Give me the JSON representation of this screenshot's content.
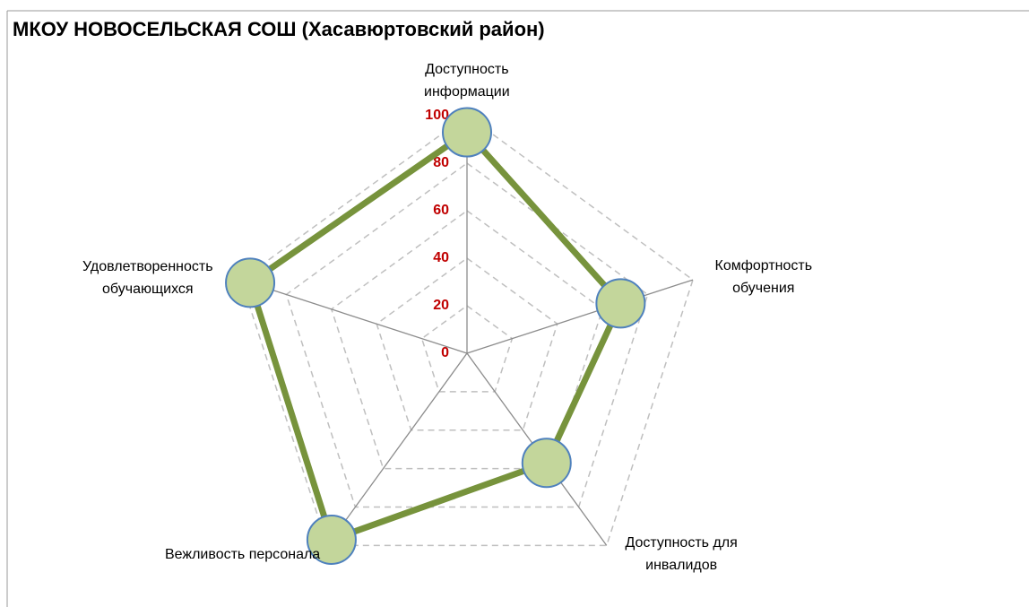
{
  "chart_data": {
    "type": "radar",
    "title": "МКОУ НОВОСЕЛЬСКАЯ СОШ (Хасавюртовский район)",
    "categories": [
      "Доступность\nинформации",
      "Комфортность\nобучения",
      "Доступность для\nинвалидов",
      "Вежливость персонала",
      "Удовлетворенность\nобучающихся"
    ],
    "series": [
      {
        "color": "#77933c",
        "marker_color": "#c3d69b",
        "marker_edge": "#4f81bd",
        "values": [
          93,
          68,
          57,
          97,
          96
        ]
      }
    ],
    "ylim": [
      0,
      100
    ],
    "yticks": [
      0,
      20,
      40,
      60,
      80,
      100
    ],
    "tick_color": "#c00000",
    "grid": true
  }
}
